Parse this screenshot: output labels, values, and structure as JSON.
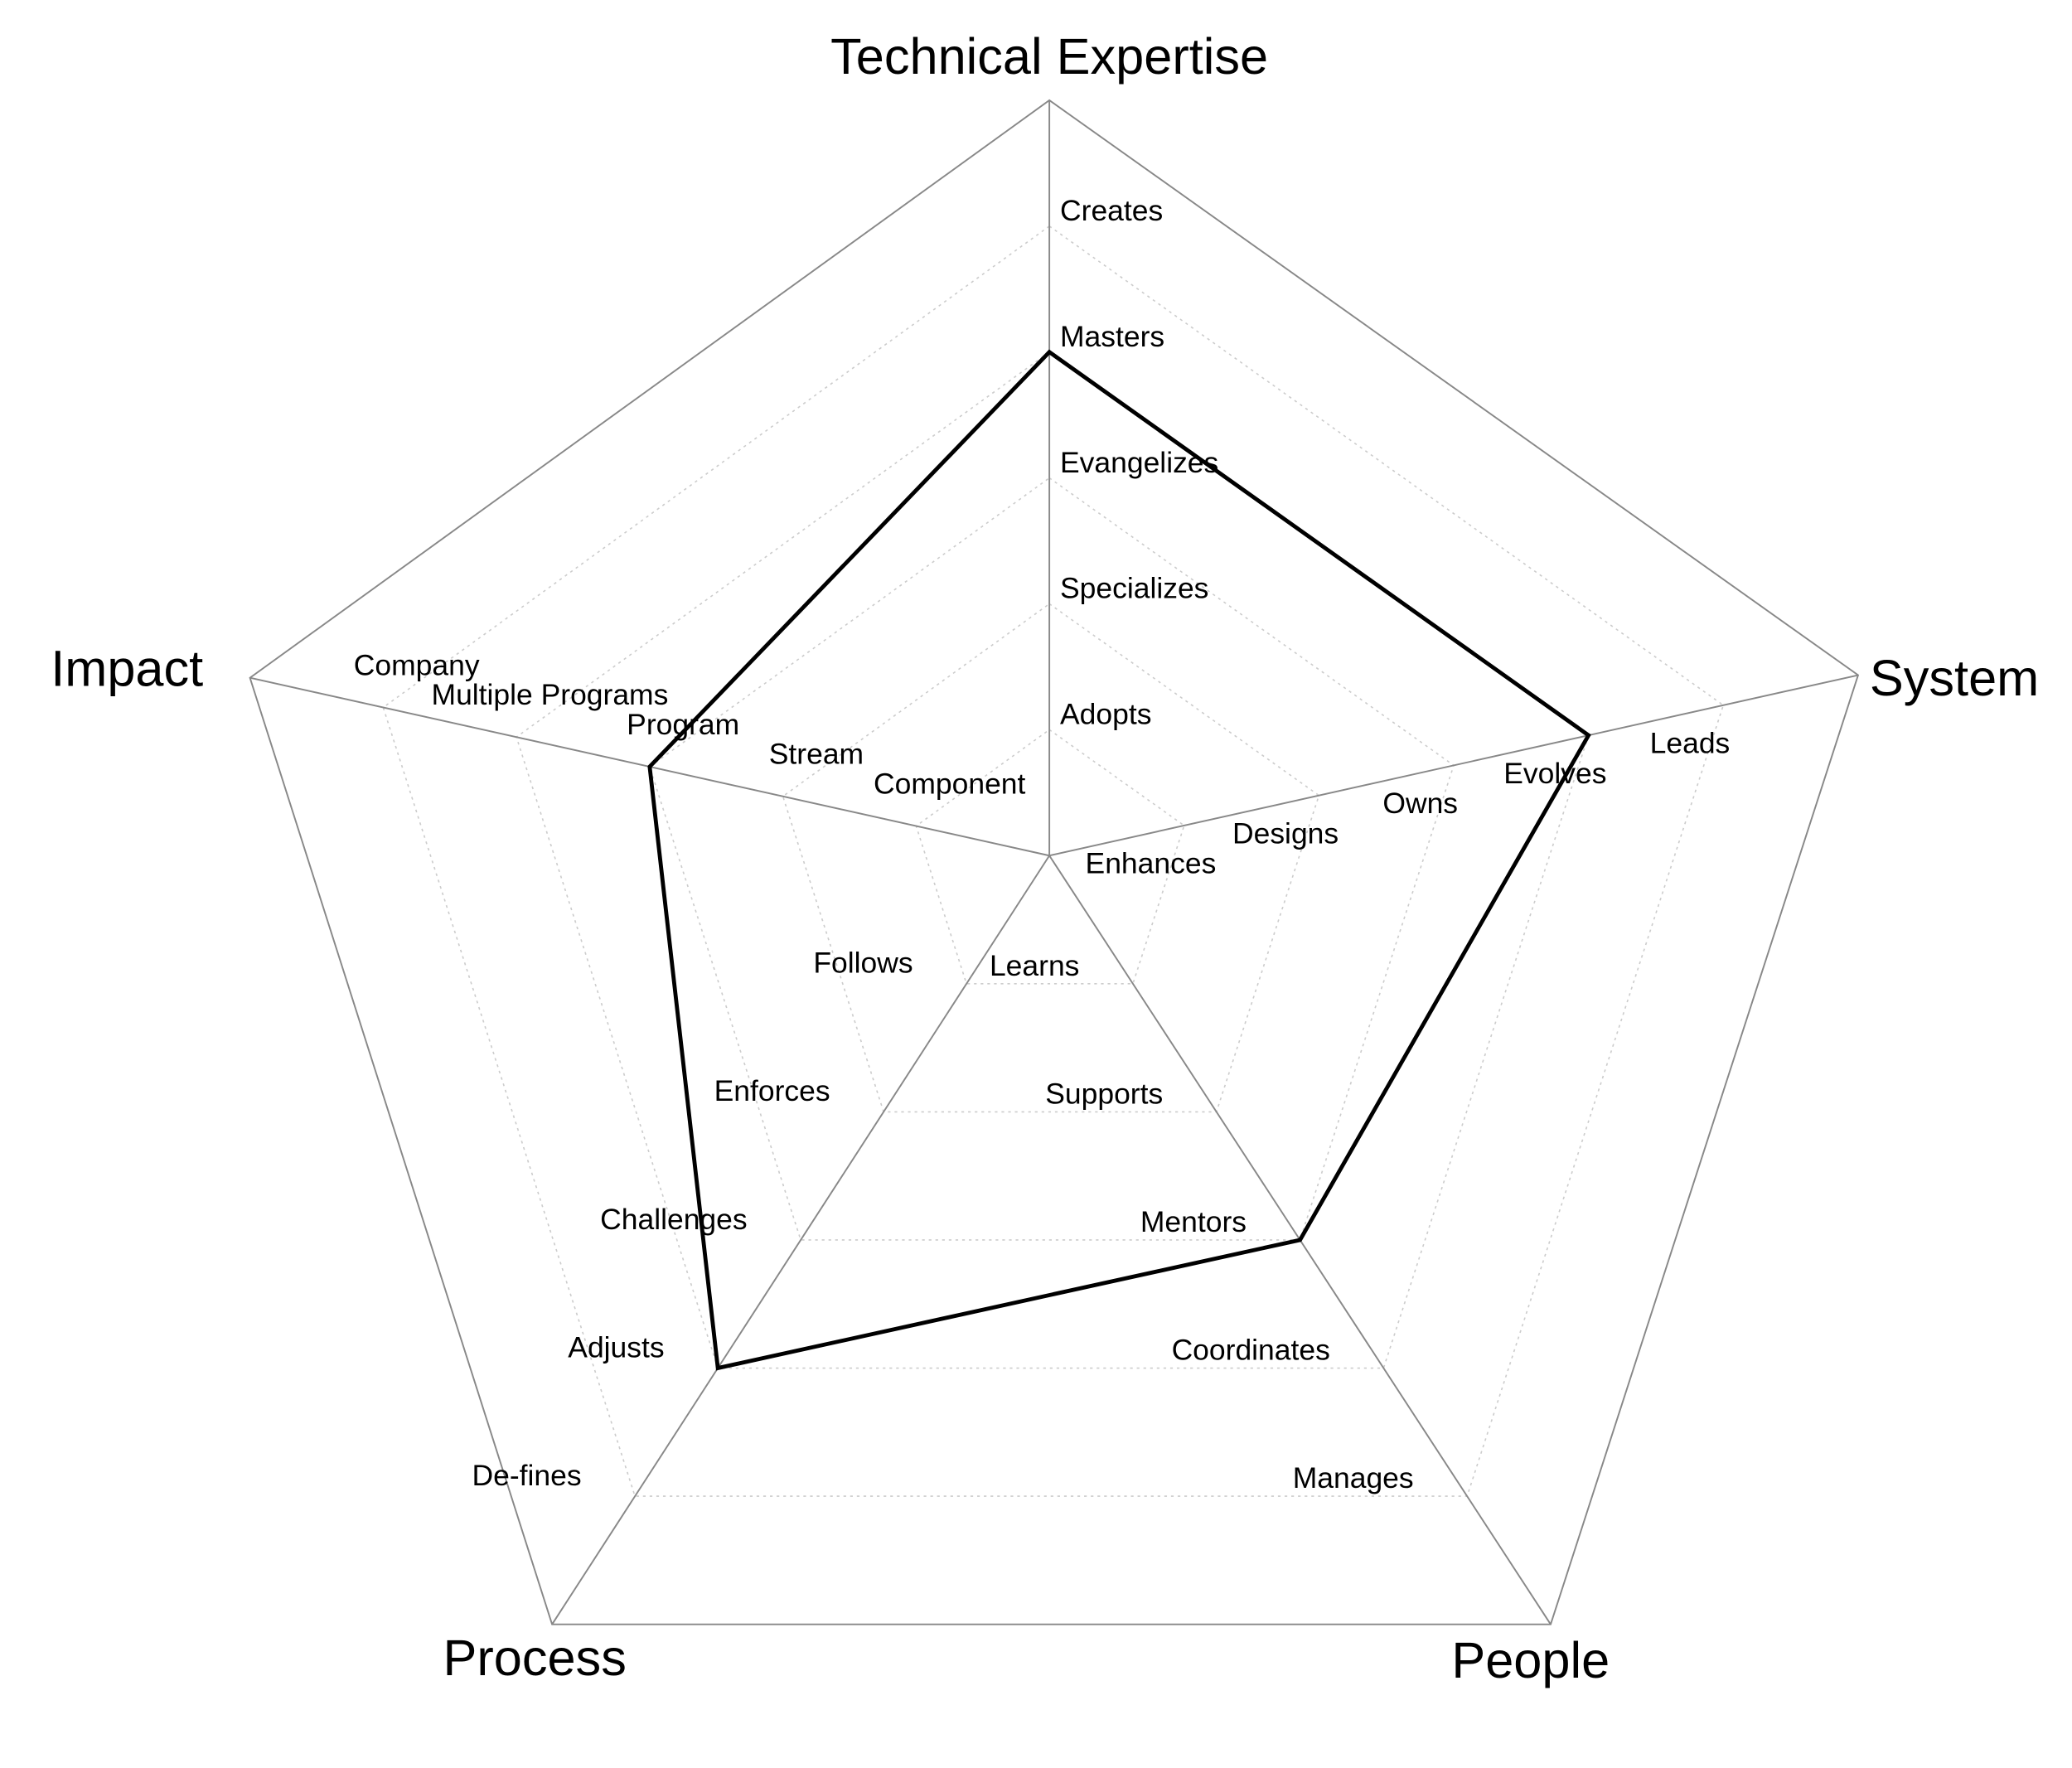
{
  "chart_data": {
    "type": "radar",
    "axes": [
      {
        "name": "Technical Expertise",
        "levels": [
          "Adopts",
          "Specializes",
          "Evangelizes",
          "Masters",
          "Creates"
        ]
      },
      {
        "name": "System",
        "levels": [
          "Enhances",
          "Designs",
          "Owns",
          "Evolves",
          "Leads"
        ]
      },
      {
        "name": "People",
        "levels": [
          "Learns",
          "Supports",
          "Mentors",
          "Coordinates",
          "Manages"
        ]
      },
      {
        "name": "Process",
        "levels": [
          "Follows",
          "Enforces",
          "Challenges",
          "Adjusts",
          "De-fines"
        ]
      },
      {
        "name": "Impact",
        "levels": [
          "Component",
          "Stream",
          "Program",
          "Multiple Programs",
          "Company"
        ]
      }
    ],
    "series": [
      {
        "color": "#000000",
        "values": [
          4,
          4,
          3,
          4,
          3
        ]
      }
    ],
    "rlim": [
      0,
      6
    ],
    "rticks": [
      1,
      2,
      3,
      4,
      5,
      6
    ],
    "grid": true
  }
}
